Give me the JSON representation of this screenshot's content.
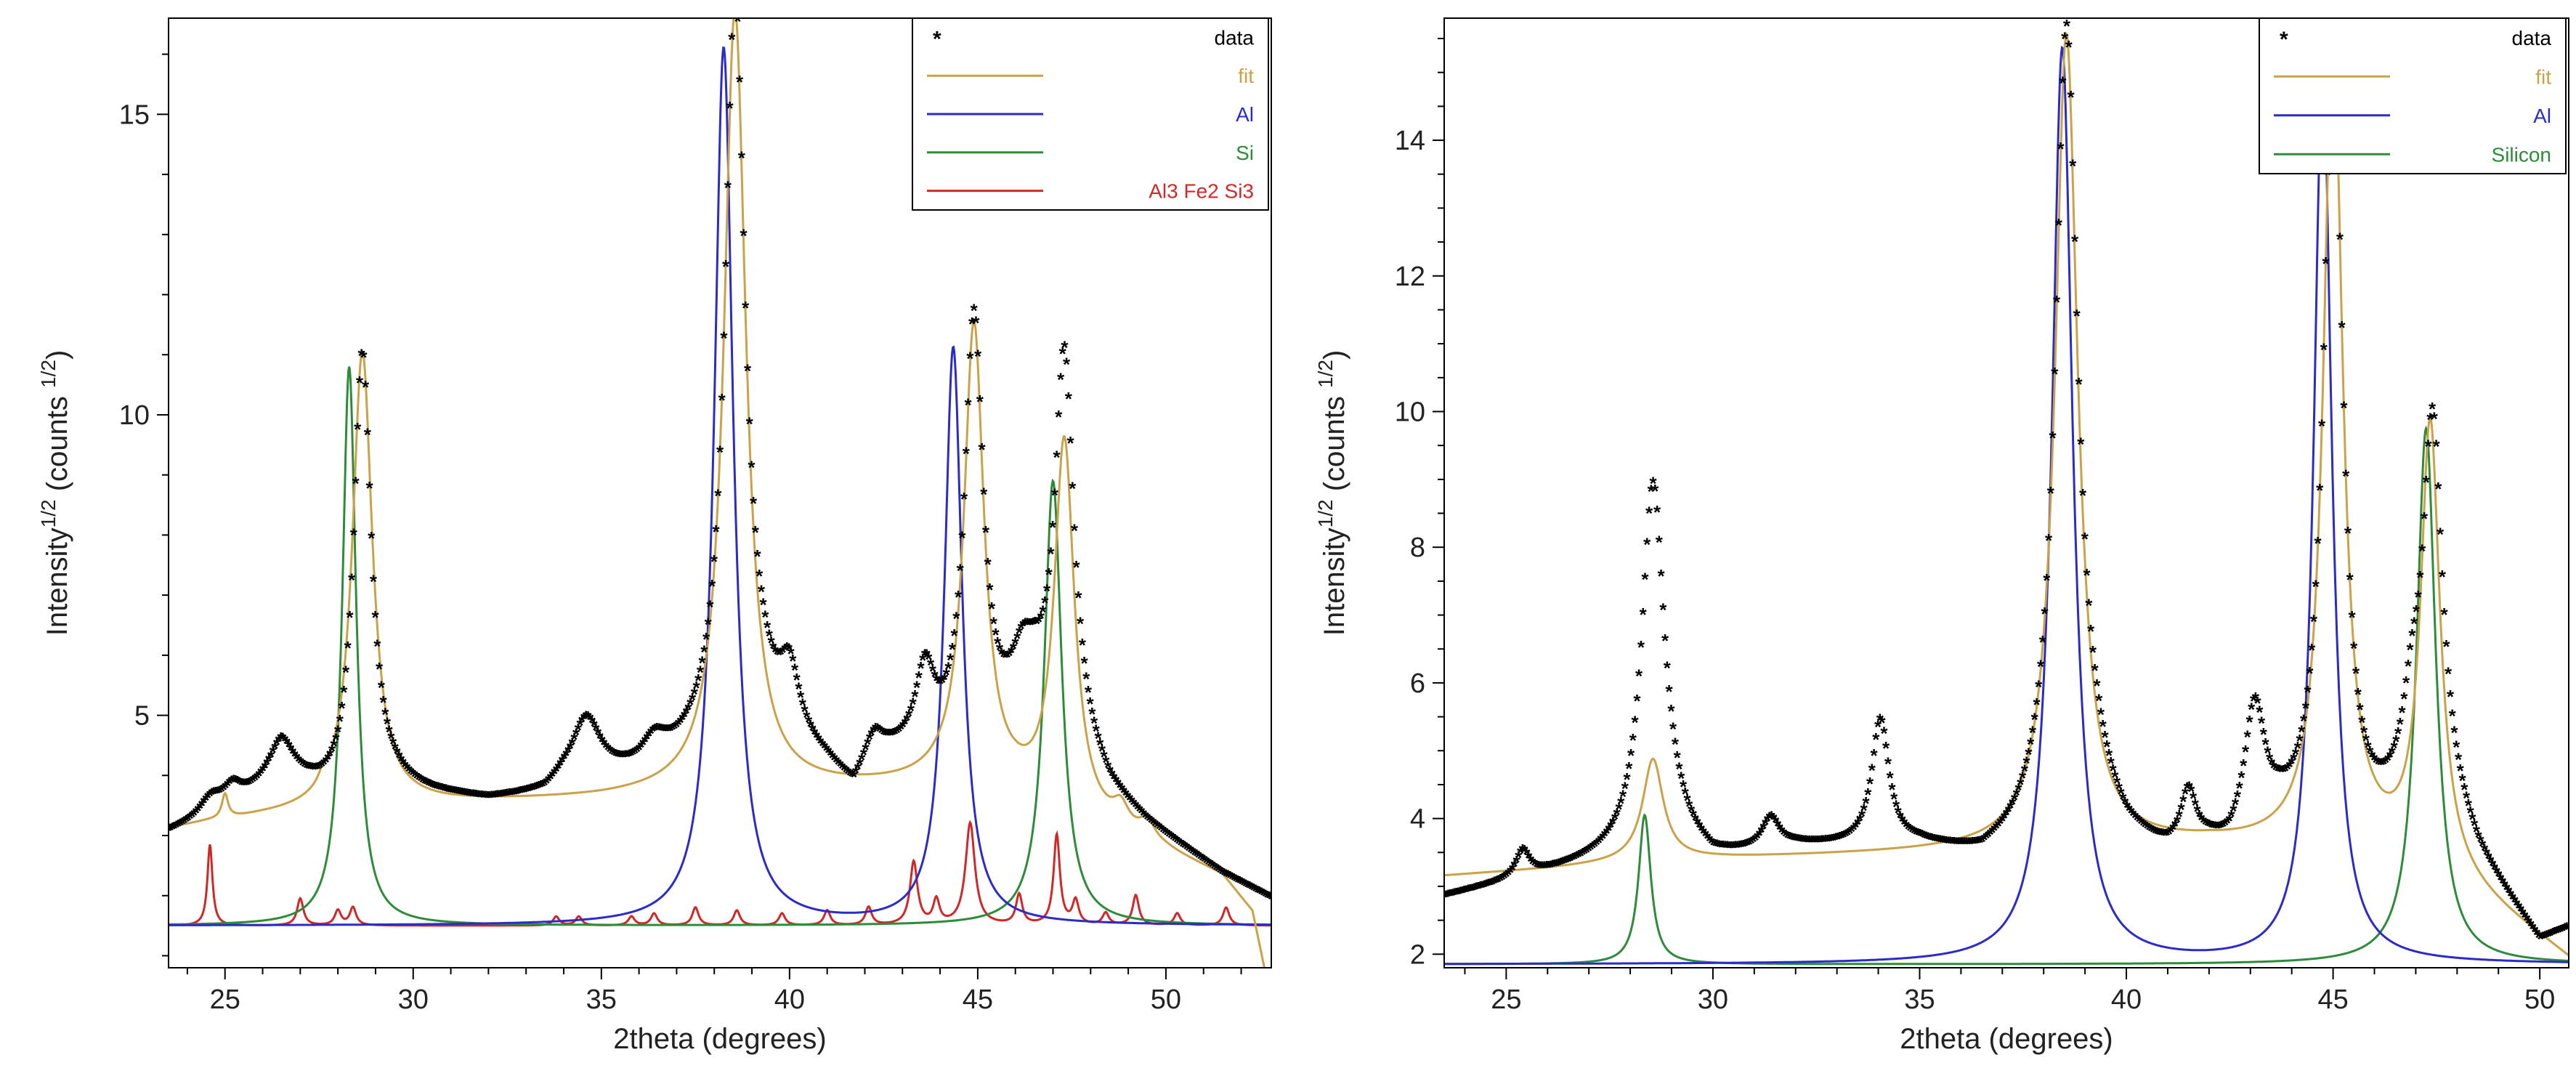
{
  "chart_data": [
    {
      "type": "line",
      "xlabel": "2theta (degrees)",
      "ylabel": "Intensity",
      "ylabel_sup1": "1/2",
      "ylabel_mid": "(counts",
      "ylabel_sup2": "1/2",
      "ylabel_end": ")",
      "xlim": [
        23.5,
        52.8
      ],
      "ylim": [
        0.8,
        16.6
      ],
      "xticks": [
        25,
        30,
        35,
        40,
        45,
        50
      ],
      "yticks": [
        5,
        10,
        15
      ],
      "legend_position": "top-right",
      "legend": [
        {
          "name": "data",
          "marker": "*",
          "color": "#000000"
        },
        {
          "name": "fit",
          "color": "#C9A24A"
        },
        {
          "name": "Al",
          "color": "#2B2BC8"
        },
        {
          "name": "Si",
          "color": "#2E8B3A"
        },
        {
          "name": "Al3 Fe2 Si3",
          "color": "#D02828"
        }
      ],
      "series": [
        {
          "name": "data",
          "baseline": [
            [
              23.5,
              3.0
            ],
            [
              24.5,
              3.2
            ],
            [
              25.5,
              3.5
            ],
            [
              26.5,
              3.9
            ],
            [
              27.5,
              3.6
            ],
            [
              28.0,
              3.5
            ],
            [
              29.5,
              3.7
            ],
            [
              30.5,
              3.6
            ],
            [
              32.0,
              3.5
            ],
            [
              33.5,
              3.6
            ],
            [
              34.0,
              3.8
            ],
            [
              36.0,
              3.9
            ],
            [
              37.0,
              4.1
            ],
            [
              39.3,
              4.7
            ],
            [
              40.3,
              4.3
            ],
            [
              41.0,
              4.0
            ],
            [
              41.7,
              3.6
            ],
            [
              42.3,
              4.2
            ],
            [
              43.0,
              4.2
            ],
            [
              44.0,
              4.2
            ],
            [
              45.3,
              4.3
            ],
            [
              45.8,
              4.6
            ],
            [
              46.5,
              5.0
            ],
            [
              47.8,
              4.2
            ],
            [
              48.5,
              3.6
            ],
            [
              49.5,
              3.1
            ],
            [
              50.5,
              2.7
            ],
            [
              51.5,
              2.3
            ],
            [
              52.8,
              1.9
            ]
          ],
          "peaks": [
            [
              24.6,
              0.3,
              0.35
            ],
            [
              25.2,
              0.3,
              0.3
            ],
            [
              26.5,
              0.55,
              0.4
            ],
            [
              28.65,
              7.4,
              0.28
            ],
            [
              34.6,
              1.0,
              0.45
            ],
            [
              36.4,
              0.4,
              0.4
            ],
            [
              38.55,
              12.5,
              0.32
            ],
            [
              40.0,
              1.0,
              0.3
            ],
            [
              42.2,
              0.3,
              0.3
            ],
            [
              43.6,
              1.3,
              0.3
            ],
            [
              44.9,
              7.2,
              0.3
            ],
            [
              46.2,
              0.8,
              0.35
            ],
            [
              47.3,
              6.4,
              0.3
            ]
          ]
        },
        {
          "name": "fit",
          "baseline": [
            [
              23.5,
              3.1
            ],
            [
              24.5,
              3.2
            ],
            [
              26.0,
              3.3
            ],
            [
              28.0,
              3.4
            ],
            [
              30.0,
              3.5
            ],
            [
              32.5,
              3.55
            ],
            [
              35.0,
              3.6
            ],
            [
              38.0,
              3.7
            ],
            [
              41.0,
              3.75
            ],
            [
              44.0,
              3.8
            ],
            [
              46.0,
              3.6
            ],
            [
              48.0,
              3.1
            ],
            [
              50.0,
              2.7
            ],
            [
              51.5,
              2.3
            ],
            [
              52.3,
              1.7
            ],
            [
              52.8,
              0.2
            ]
          ],
          "peaks": [
            [
              25.0,
              0.4,
              0.1
            ],
            [
              27.6,
              0.15,
              0.15
            ],
            [
              28.65,
              7.6,
              0.32
            ],
            [
              38.55,
              13.0,
              0.35
            ],
            [
              44.9,
              7.7,
              0.32
            ],
            [
              47.3,
              6.2,
              0.32
            ],
            [
              48.8,
              0.35,
              0.25
            ],
            [
              49.5,
              0.3,
              0.25
            ]
          ]
        },
        {
          "name": "Al",
          "baseline": 1.5,
          "peaks": [
            [
              38.25,
              14.6,
              0.3
            ],
            [
              44.35,
              9.6,
              0.28
            ]
          ]
        },
        {
          "name": "Si",
          "baseline": 1.5,
          "peaks": [
            [
              28.3,
              9.3,
              0.22
            ],
            [
              47.0,
              7.4,
              0.28
            ]
          ]
        },
        {
          "name": "Al3 Fe2 Si3",
          "baseline": 1.5,
          "peaks": [
            [
              24.6,
              1.35,
              0.08
            ],
            [
              27.0,
              0.45,
              0.1
            ],
            [
              28.0,
              0.25,
              0.1
            ],
            [
              28.4,
              0.3,
              0.1
            ],
            [
              33.8,
              0.15,
              0.1
            ],
            [
              34.4,
              0.15,
              0.1
            ],
            [
              35.8,
              0.15,
              0.1
            ],
            [
              36.4,
              0.2,
              0.1
            ],
            [
              37.5,
              0.3,
              0.1
            ],
            [
              38.6,
              0.25,
              0.1
            ],
            [
              39.8,
              0.2,
              0.1
            ],
            [
              41.0,
              0.25,
              0.1
            ],
            [
              42.1,
              0.3,
              0.1
            ],
            [
              43.3,
              1.05,
              0.12
            ],
            [
              43.9,
              0.4,
              0.1
            ],
            [
              44.8,
              1.7,
              0.15
            ],
            [
              46.1,
              0.5,
              0.1
            ],
            [
              47.1,
              1.5,
              0.1
            ],
            [
              47.6,
              0.4,
              0.1
            ],
            [
              48.4,
              0.2,
              0.1
            ],
            [
              49.2,
              0.5,
              0.1
            ],
            [
              50.3,
              0.2,
              0.1
            ],
            [
              51.6,
              0.3,
              0.1
            ]
          ]
        }
      ]
    },
    {
      "type": "line",
      "xlabel": "2theta (degrees)",
      "ylabel": "Intensity",
      "ylabel_sup1": "1/2",
      "ylabel_mid": "(counts",
      "ylabel_sup2": "1/2",
      "ylabel_end": ")",
      "xlim": [
        23.5,
        50.7
      ],
      "ylim": [
        1.8,
        15.8
      ],
      "xticks": [
        25,
        30,
        35,
        40,
        45,
        50
      ],
      "yticks": [
        2,
        4,
        6,
        8,
        10,
        12,
        14
      ],
      "legend_position": "top-right",
      "legend": [
        {
          "name": "data",
          "marker": "*",
          "color": "#000000"
        },
        {
          "name": "fit",
          "color": "#C9A24A"
        },
        {
          "name": "Al",
          "color": "#2B2BC8"
        },
        {
          "name": "Silicon",
          "color": "#2E8B3A"
        }
      ],
      "series": [
        {
          "name": "data",
          "baseline": [
            [
              23.5,
              2.8
            ],
            [
              25.0,
              3.0
            ],
            [
              26.5,
              3.2
            ],
            [
              28.0,
              3.4
            ],
            [
              29.0,
              3.6
            ],
            [
              30.0,
              3.3
            ],
            [
              32.0,
              3.5
            ],
            [
              35.0,
              3.5
            ],
            [
              36.5,
              3.3
            ],
            [
              37.5,
              3.5
            ],
            [
              39.3,
              3.9
            ],
            [
              40.0,
              3.5
            ],
            [
              41.0,
              3.3
            ],
            [
              42.0,
              3.4
            ],
            [
              42.5,
              3.3
            ],
            [
              43.7,
              3.7
            ],
            [
              45.6,
              3.5
            ],
            [
              46.3,
              3.8
            ],
            [
              47.5,
              4.4
            ],
            [
              48.5,
              3.3
            ],
            [
              49.5,
              2.5
            ],
            [
              50.0,
              2.1
            ],
            [
              50.7,
              2.3
            ]
          ],
          "peaks": [
            [
              25.4,
              0.4,
              0.2
            ],
            [
              28.55,
              5.4,
              0.33
            ],
            [
              31.4,
              0.45,
              0.25
            ],
            [
              34.05,
              1.85,
              0.25
            ],
            [
              38.55,
              11.9,
              0.33
            ],
            [
              41.5,
              0.8,
              0.22
            ],
            [
              43.1,
              1.9,
              0.3
            ],
            [
              45.0,
              11.8,
              0.28
            ],
            [
              46.9,
              1.0,
              0.25
            ],
            [
              47.4,
              5.3,
              0.28
            ]
          ]
        },
        {
          "name": "fit",
          "baseline": [
            [
              23.5,
              3.15
            ],
            [
              26.0,
              3.25
            ],
            [
              28.0,
              3.35
            ],
            [
              30.0,
              3.4
            ],
            [
              33.0,
              3.45
            ],
            [
              36.0,
              3.5
            ],
            [
              39.0,
              3.55
            ],
            [
              42.0,
              3.6
            ],
            [
              44.0,
              3.55
            ],
            [
              46.0,
              3.45
            ],
            [
              47.5,
              3.2
            ],
            [
              49.0,
              2.6
            ],
            [
              50.0,
              2.2
            ],
            [
              50.7,
              1.9
            ]
          ],
          "peaks": [
            [
              28.55,
              1.5,
              0.3
            ],
            [
              38.55,
              12.0,
              0.33
            ],
            [
              45.0,
              12.0,
              0.28
            ],
            [
              47.35,
              6.5,
              0.28
            ]
          ]
        },
        {
          "name": "Al",
          "baseline": 1.85,
          "peaks": [
            [
              38.45,
              13.5,
              0.3
            ],
            [
              44.75,
              13.2,
              0.26
            ]
          ]
        },
        {
          "name": "Silicon",
          "baseline": 1.85,
          "peaks": [
            [
              28.35,
              2.2,
              0.18
            ],
            [
              47.25,
              7.9,
              0.28
            ]
          ]
        }
      ]
    }
  ]
}
